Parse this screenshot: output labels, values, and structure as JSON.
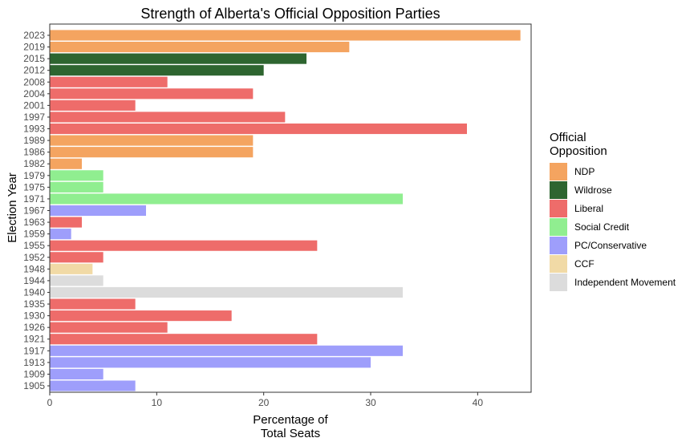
{
  "chart_data": {
    "type": "bar",
    "orientation": "horizontal",
    "title": "Strength of Alberta's Official Opposition Parties",
    "xlabel": [
      "Percentage of",
      "Total Seats"
    ],
    "ylabel": "Election Year",
    "xlim": [
      0,
      45
    ],
    "xticks": [
      0,
      10,
      20,
      30,
      40
    ],
    "grid": false,
    "legend": {
      "title": [
        "Official",
        "Opposition"
      ],
      "placement": "right",
      "entries": [
        {
          "key": "NDP",
          "label": "NDP",
          "color": "#F4A460"
        },
        {
          "key": "Wildrose",
          "label": "Wildrose",
          "color": "#2E6530"
        },
        {
          "key": "Liberal",
          "label": "Liberal",
          "color": "#EE6C6A"
        },
        {
          "key": "SocialCredit",
          "label": "Social Credit",
          "color": "#90EE90"
        },
        {
          "key": "PC",
          "label": "PC/Conservative",
          "color": "#9E9EFB"
        },
        {
          "key": "CCF",
          "label": "CCF",
          "color": "#F1DAA6"
        },
        {
          "key": "Independent",
          "label": "Independent Movement",
          "color": "#DCDCDC"
        }
      ]
    },
    "bars": [
      {
        "year": "2023",
        "value": 44,
        "party": "NDP"
      },
      {
        "year": "2019",
        "value": 28,
        "party": "NDP"
      },
      {
        "year": "2015",
        "value": 24,
        "party": "Wildrose"
      },
      {
        "year": "2012",
        "value": 20,
        "party": "Wildrose"
      },
      {
        "year": "2008",
        "value": 11,
        "party": "Liberal"
      },
      {
        "year": "2004",
        "value": 19,
        "party": "Liberal"
      },
      {
        "year": "2001",
        "value": 8,
        "party": "Liberal"
      },
      {
        "year": "1997",
        "value": 22,
        "party": "Liberal"
      },
      {
        "year": "1993",
        "value": 39,
        "party": "Liberal"
      },
      {
        "year": "1989",
        "value": 19,
        "party": "NDP"
      },
      {
        "year": "1986",
        "value": 19,
        "party": "NDP"
      },
      {
        "year": "1982",
        "value": 3,
        "party": "NDP"
      },
      {
        "year": "1979",
        "value": 5,
        "party": "SocialCredit"
      },
      {
        "year": "1975",
        "value": 5,
        "party": "SocialCredit"
      },
      {
        "year": "1971",
        "value": 33,
        "party": "SocialCredit"
      },
      {
        "year": "1967",
        "value": 9,
        "party": "PC"
      },
      {
        "year": "1963",
        "value": 3,
        "party": "Liberal"
      },
      {
        "year": "1959",
        "value": 2,
        "party": "PC"
      },
      {
        "year": "1955",
        "value": 25,
        "party": "Liberal"
      },
      {
        "year": "1952",
        "value": 5,
        "party": "Liberal"
      },
      {
        "year": "1948",
        "value": 4,
        "party": "CCF"
      },
      {
        "year": "1944",
        "value": 5,
        "party": "Independent"
      },
      {
        "year": "1940",
        "value": 33,
        "party": "Independent"
      },
      {
        "year": "1935",
        "value": 8,
        "party": "Liberal"
      },
      {
        "year": "1930",
        "value": 17,
        "party": "Liberal"
      },
      {
        "year": "1926",
        "value": 11,
        "party": "Liberal"
      },
      {
        "year": "1921",
        "value": 25,
        "party": "Liberal"
      },
      {
        "year": "1917",
        "value": 33,
        "party": "PC"
      },
      {
        "year": "1913",
        "value": 30,
        "party": "PC"
      },
      {
        "year": "1909",
        "value": 5,
        "party": "PC"
      },
      {
        "year": "1905",
        "value": 8,
        "party": "PC"
      }
    ]
  }
}
